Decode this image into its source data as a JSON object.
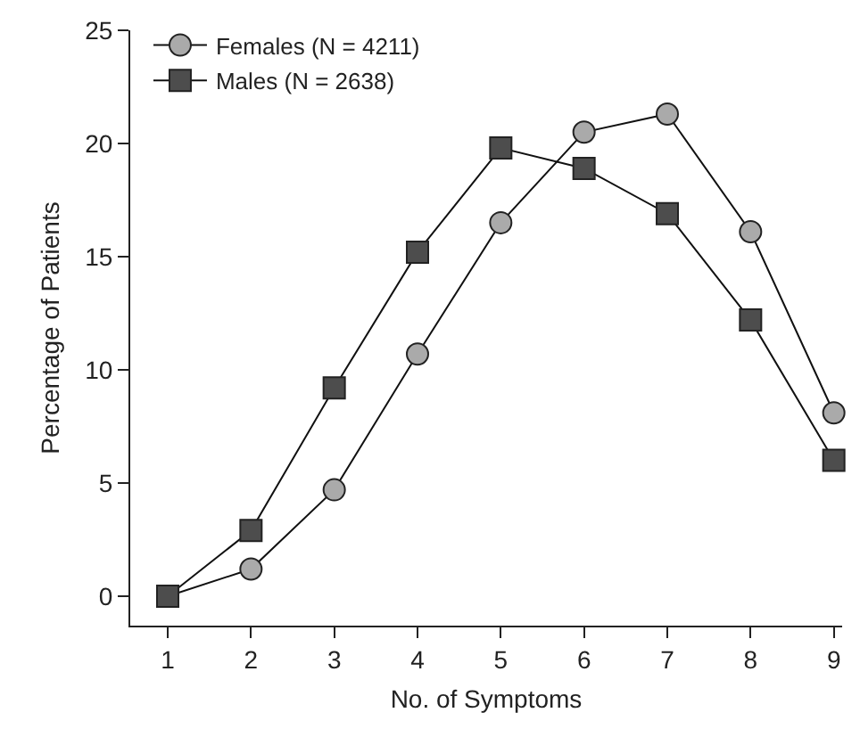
{
  "chart_data": {
    "type": "line",
    "xlabel": "No. of Symptoms",
    "ylabel": "Percentage of Patients",
    "x": [
      1,
      2,
      3,
      4,
      5,
      6,
      7,
      8,
      9
    ],
    "series": [
      {
        "name": "Females (N = 4211)",
        "color": "#aaaaaa",
        "marker": "circle",
        "values": [
          0,
          1.2,
          4.7,
          10.7,
          16.5,
          20.5,
          21.3,
          16.1,
          8.1
        ]
      },
      {
        "name": "Males (N = 2638)",
        "color": "#4d4d4d",
        "marker": "square",
        "values": [
          0,
          2.9,
          9.2,
          15.2,
          19.8,
          18.9,
          16.9,
          12.2,
          6.0
        ]
      }
    ],
    "xlim": [
      0.55,
      9.1
    ],
    "xticks": [
      1,
      2,
      3,
      4,
      5,
      6,
      7,
      8,
      9
    ],
    "ylim": [
      -1.3,
      25
    ],
    "yticks": [
      0,
      5,
      10,
      15,
      20,
      25
    ],
    "grid": false,
    "legend": "top left",
    "line_style": "solid"
  }
}
